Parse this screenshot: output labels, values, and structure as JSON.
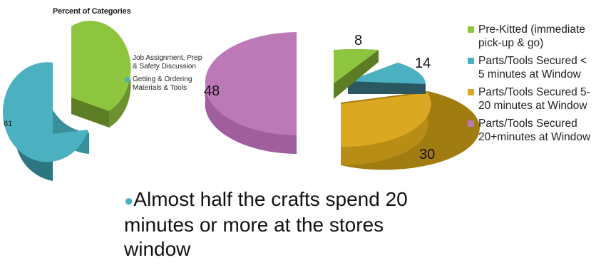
{
  "left_chart": {
    "title": "Percent of Categories",
    "legend": [
      {
        "label": "Job Assignment, Prep & Safety Discussion",
        "color": "#8dc53e"
      },
      {
        "label": "Getting & Ordering Materials & Tools",
        "color": "#4bb1c0"
      }
    ],
    "data_label": "61"
  },
  "right_chart": {
    "legend": [
      {
        "label": "Pre-Kitted (immediate pick-up & go)",
        "color": "#8dc53e"
      },
      {
        "label": "Parts/Tools Secured < 5 minutes at Window",
        "color": "#4bb1c0"
      },
      {
        "label": "Parts/Tools Secured 5-20 minutes at Window",
        "color": "#dba821"
      },
      {
        "label": "Parts/Tools Secured 20+minutes at Window",
        "color": "#bb7ab7"
      }
    ],
    "data_labels": {
      "pre_kitted": "8",
      "under_5": "14",
      "five_to_20": "30",
      "over_20": "48"
    }
  },
  "bullet_text": "Almost half the crafts spend 20 minutes or more at the stores window",
  "chart_data": [
    {
      "type": "pie",
      "title": "Percent of Categories",
      "categories": [
        "Job Assignment, Prep & Safety Discussion",
        "Getting & Ordering Materials & Tools"
      ],
      "values": [
        39,
        61
      ],
      "data_labels": [
        "",
        "61"
      ],
      "colors": [
        "#8dc53e",
        "#4bb1c0"
      ],
      "legend_position": "right"
    },
    {
      "type": "pie",
      "categories": [
        "Pre-Kitted (immediate pick-up & go)",
        "Parts/Tools Secured < 5 minutes at Window",
        "Parts/Tools Secured 5-20 minutes at Window",
        "Parts/Tools Secured 20+minutes at Window"
      ],
      "values": [
        8,
        14,
        30,
        48
      ],
      "colors": [
        "#8dc53e",
        "#4bb1c0",
        "#dba821",
        "#bb7ab7"
      ],
      "legend_position": "right"
    }
  ]
}
